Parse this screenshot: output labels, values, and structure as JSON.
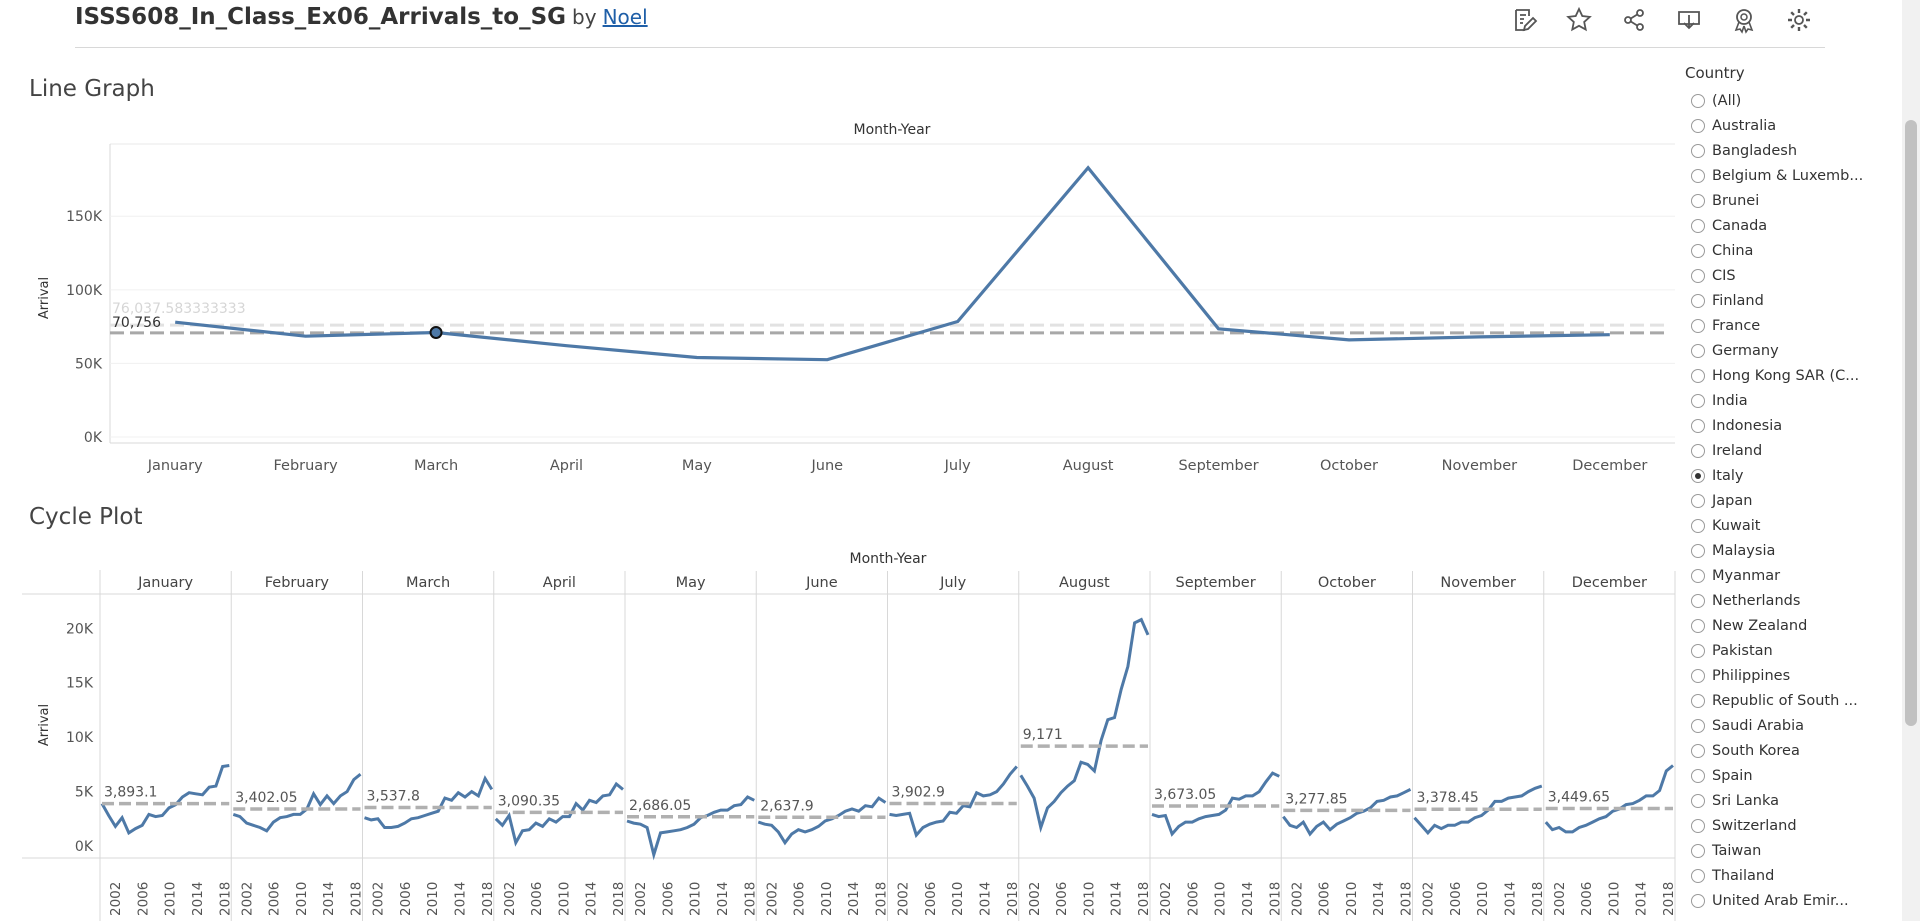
{
  "header": {
    "title": "ISSS608_In_Class_Ex06_Arrivals_to_SG",
    "by": "by",
    "author": "Noel",
    "icons": [
      "edit-icon",
      "favorite-star-icon",
      "share-icon",
      "download-icon",
      "badge-icon",
      "settings-gear-icon"
    ]
  },
  "colors": {
    "line": "#4e79a7",
    "ref": "#b0b0b0"
  },
  "line_graph": {
    "title": "Line Graph",
    "header_label": "Month-Year",
    "ylabel": "Arrival",
    "avg_label": "70,756",
    "hover_label": "76,037.583333333",
    "chart_data": {
      "type": "line",
      "categories": [
        "January",
        "February",
        "March",
        "April",
        "May",
        "June",
        "July",
        "August",
        "September",
        "October",
        "November",
        "December"
      ],
      "values": [
        78000,
        68500,
        71000,
        62000,
        54000,
        52500,
        78500,
        183000,
        73500,
        66000,
        68000,
        69500
      ],
      "reference_line": 70756,
      "ylim": [
        0,
        195000
      ],
      "yticks": [
        0,
        50000,
        100000,
        150000
      ],
      "ytick_labels": [
        "0K",
        "50K",
        "100K",
        "150K"
      ],
      "highlight_index": 2
    }
  },
  "cycle_plot": {
    "title": "Cycle Plot",
    "header_label": "Month-Year",
    "ylabel": "Arrival",
    "chart_data": {
      "type": "line",
      "months": [
        "January",
        "February",
        "March",
        "April",
        "May",
        "June",
        "July",
        "August",
        "September",
        "October",
        "November",
        "December"
      ],
      "year_ticks": [
        "2002",
        "2006",
        "2010",
        "2014",
        "2018"
      ],
      "ylim": [
        0,
        21500
      ],
      "yticks": [
        0,
        5000,
        10000,
        15000,
        20000
      ],
      "ytick_labels": [
        "0K",
        "5K",
        "10K",
        "15K",
        "20K"
      ],
      "averages": [
        3893.1,
        3402.05,
        3537.8,
        3090.35,
        2686.05,
        2637.9,
        3902.9,
        9171,
        3673.05,
        3277.85,
        3378.45,
        3449.65
      ],
      "avg_labels": [
        "3,893.1",
        "3,402.05",
        "3,537.8",
        "3,090.35",
        "2,686.05",
        "2,637.9",
        "3,902.9",
        "9,171",
        "3,673.05",
        "3,277.85",
        "3,378.45",
        "3,449.65"
      ],
      "series": [
        [
          3900,
          2800,
          1800,
          2600,
          1200,
          1600,
          1900,
          2900,
          2700,
          2800,
          3500,
          3800,
          4500,
          4900,
          4800,
          4700,
          5400,
          5500,
          7300,
          7400
        ],
        [
          2900,
          2700,
          2100,
          1900,
          1700,
          1400,
          2200,
          2600,
          2700,
          2900,
          2900,
          3400,
          4800,
          3800,
          4600,
          3900,
          4600,
          5000,
          6100,
          6600
        ],
        [
          2600,
          2400,
          2500,
          1700,
          1700,
          1800,
          2100,
          2500,
          2600,
          2800,
          3000,
          3200,
          4400,
          4200,
          4900,
          4500,
          5000,
          4600,
          6200,
          5200
        ],
        [
          2500,
          1900,
          2800,
          300,
          1400,
          1500,
          2100,
          1800,
          2500,
          2200,
          2700,
          2700,
          3900,
          3300,
          4200,
          4000,
          4600,
          4700,
          5700,
          5200
        ],
        [
          2300,
          2100,
          2000,
          1700,
          -800,
          1200,
          1300,
          1400,
          1500,
          1700,
          2000,
          2600,
          2800,
          3100,
          3300,
          3300,
          3700,
          3800,
          4500,
          4200
        ],
        [
          2200,
          2000,
          1900,
          1300,
          300,
          1100,
          1500,
          1300,
          1500,
          1800,
          2300,
          2500,
          2800,
          3200,
          3400,
          3200,
          3700,
          3600,
          4400,
          4000
        ],
        [
          2900,
          2800,
          2900,
          3000,
          1000,
          1700,
          2000,
          2200,
          2300,
          3100,
          3000,
          3700,
          3600,
          4900,
          4600,
          4700,
          5000,
          5700,
          6600,
          7300
        ],
        [
          6500,
          5500,
          4400,
          1700,
          3500,
          4100,
          4900,
          5500,
          6000,
          7700,
          7500,
          6900,
          9700,
          11600,
          11800,
          14400,
          16500,
          20500,
          20800,
          19400
        ],
        [
          2900,
          2700,
          2800,
          1100,
          1800,
          2200,
          2200,
          2500,
          2700,
          2800,
          2900,
          3300,
          4400,
          4300,
          4600,
          4600,
          5000,
          5900,
          6700,
          6400
        ],
        [
          2700,
          1900,
          1700,
          2200,
          1100,
          1800,
          2200,
          1500,
          2000,
          2300,
          2600,
          3000,
          3200,
          3500,
          4100,
          4200,
          4500,
          4600,
          4900,
          5200
        ],
        [
          2600,
          1900,
          1200,
          1900,
          1600,
          1900,
          1900,
          2200,
          2200,
          2600,
          2800,
          3300,
          4100,
          4100,
          4400,
          4500,
          4600,
          5000,
          5300,
          5500
        ],
        [
          2200,
          1500,
          1700,
          1300,
          1300,
          1700,
          1900,
          2200,
          2500,
          2700,
          3200,
          3400,
          3800,
          3900,
          4200,
          4600,
          4600,
          5100,
          6900,
          7400
        ]
      ]
    }
  },
  "filter": {
    "title": "Country",
    "selected": "Italy",
    "options": [
      "(All)",
      "Australia",
      "Bangladesh",
      "Belgium & Luxemb...",
      "Brunei",
      "Canada",
      "China",
      "CIS",
      "Finland",
      "France",
      "Germany",
      "Hong Kong SAR (C...",
      "India",
      "Indonesia",
      "Ireland",
      "Italy",
      "Japan",
      "Kuwait",
      "Malaysia",
      "Myanmar",
      "Netherlands",
      "New Zealand",
      "Pakistan",
      "Philippines",
      "Republic of South ...",
      "Saudi Arabia",
      "South Korea",
      "Spain",
      "Sri Lanka",
      "Switzerland",
      "Taiwan",
      "Thailand",
      "United Arab Emir..."
    ]
  }
}
